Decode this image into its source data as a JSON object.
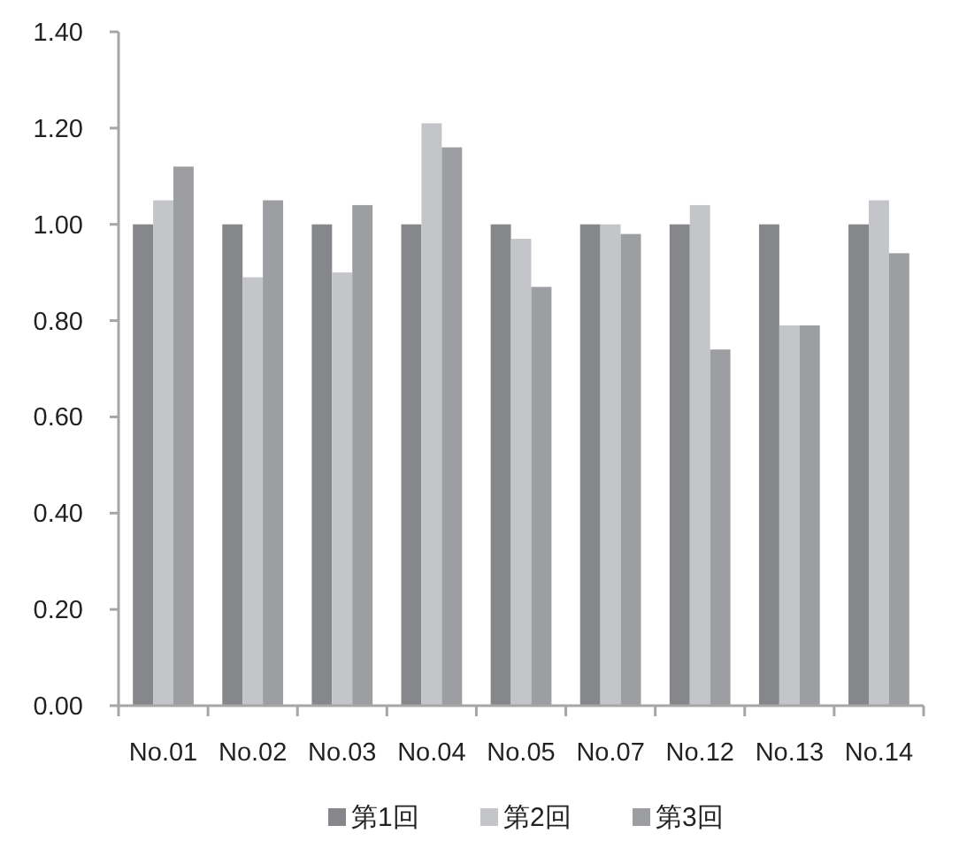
{
  "chart_data": {
    "type": "bar",
    "categories": [
      "No.01",
      "No.02",
      "No.03",
      "No.04",
      "No.05",
      "No.07",
      "No.12",
      "No.13",
      "No.14"
    ],
    "series": [
      {
        "name": "第1回",
        "color": "#86878a",
        "values": [
          1.0,
          1.0,
          1.0,
          1.0,
          1.0,
          1.0,
          1.0,
          1.0,
          1.0
        ]
      },
      {
        "name": "第2回",
        "color": "#c4c5c8",
        "values": [
          1.05,
          0.89,
          0.9,
          1.21,
          0.97,
          1.0,
          1.04,
          0.79,
          1.05
        ]
      },
      {
        "name": "第3回",
        "color": "#9d9ea1",
        "values": [
          1.12,
          1.05,
          1.04,
          1.16,
          0.87,
          0.98,
          0.74,
          0.79,
          0.94
        ]
      }
    ],
    "ylim": [
      0,
      1.4
    ],
    "yticks": [
      {
        "value": 0,
        "label": "0.00"
      },
      {
        "value": 0.2,
        "label": "0.20"
      },
      {
        "value": 0.4,
        "label": "0.40"
      },
      {
        "value": 0.6,
        "label": "0.60"
      },
      {
        "value": 0.8,
        "label": "0.80"
      },
      {
        "value": 1.0,
        "label": "1.00"
      },
      {
        "value": 1.2,
        "label": "1.20"
      },
      {
        "value": 1.4,
        "label": "1.40"
      }
    ],
    "grid": false,
    "legend": "bottom"
  }
}
